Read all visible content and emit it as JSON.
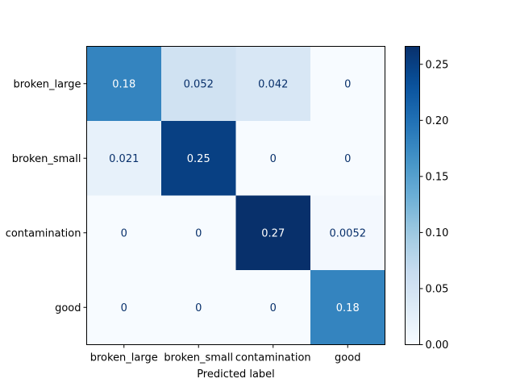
{
  "chart_data": {
    "type": "heatmap",
    "title": "",
    "xlabel": "Predicted label",
    "ylabel": "",
    "x_categories": [
      "broken_large",
      "broken_small",
      "contamination",
      "good"
    ],
    "y_categories": [
      "broken_large",
      "broken_small",
      "contamination",
      "good"
    ],
    "matrix": [
      [
        0.18,
        0.052,
        0.042,
        0
      ],
      [
        0.021,
        0.25,
        0,
        0
      ],
      [
        0,
        0,
        0.27,
        0.0052
      ],
      [
        0,
        0,
        0,
        0.18
      ]
    ],
    "value_labels": [
      [
        "0.18",
        "0.052",
        "0.042",
        "0"
      ],
      [
        "0.021",
        "0.25",
        "0",
        "0"
      ],
      [
        "0",
        "0",
        "0.27",
        "0.0052"
      ],
      [
        "0",
        "0",
        "0",
        "0.18"
      ]
    ],
    "colormap": "Blues",
    "colorbar": {
      "range": [
        0,
        0.266
      ],
      "ticks": [
        0.0,
        0.05,
        0.1,
        0.15,
        0.2,
        0.25
      ],
      "tick_labels": [
        "0.00",
        "0.05",
        "0.10",
        "0.15",
        "0.20",
        "0.25"
      ]
    },
    "grid": false,
    "colors": {
      "light_text": "#ffffff",
      "dark_text": "#08306b"
    }
  }
}
